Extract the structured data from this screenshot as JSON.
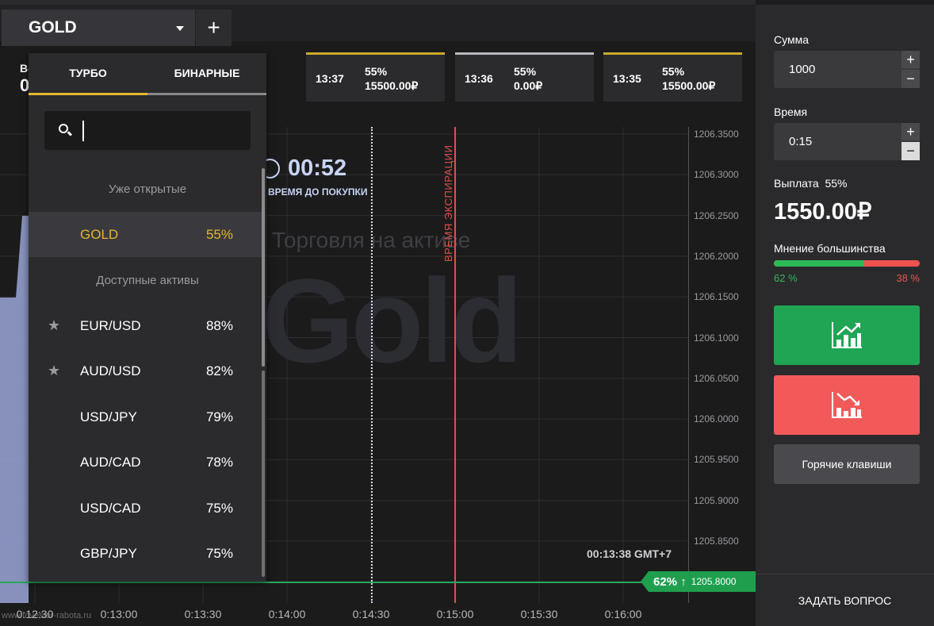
{
  "header": {
    "asset": "GOLD",
    "add_tab": "+",
    "balance_label": "Вс",
    "balance_value": "0"
  },
  "deals": [
    {
      "time": "13:37",
      "payout": "55%",
      "amount": "15500.00₽"
    },
    {
      "time": "13:36",
      "payout": "55%",
      "amount": "0.00₽"
    },
    {
      "time": "13:35",
      "payout": "55%",
      "amount": "15500.00₽"
    }
  ],
  "chart": {
    "asset_watermark": "Gold",
    "trading_caption": "Торговля на активе",
    "timer": "00:52",
    "timer_label": "ВРЕМЯ ДО ПОКУПКИ",
    "expiry_label": "ВРЕМЯ ЭКСПИРАЦИИ",
    "clock": "00:13:38 GMT+7",
    "current_payout": "62% ↑",
    "current_price": "1205.8000",
    "footer_url": "www.Investor-rabota.ru"
  },
  "chart_data": {
    "type": "line",
    "title": "",
    "xlabel": "",
    "ylabel": "",
    "x_ticks": [
      "0:12:30",
      "0:13:00",
      "0:13:30",
      "0:14:00",
      "0:14:30",
      "0:15:00",
      "0:15:30",
      "0:16:00"
    ],
    "y_ticks": [
      "1206.3500",
      "1206.3000",
      "1206.2500",
      "1206.2000",
      "1206.1500",
      "1206.1000",
      "1206.0500",
      "1206.0000",
      "1205.9500",
      "1205.9000",
      "1205.8500",
      "1205.8000"
    ],
    "ylim": [
      1205.8,
      1206.35
    ],
    "grid": true,
    "current_value": 1205.8
  },
  "dropdown": {
    "tab_turbo": "ТУРБО",
    "tab_binary": "БИНАРНЫЕ",
    "search_placeholder": "",
    "section_open": "Уже открытые",
    "section_available": "Доступные активы",
    "open_assets": [
      {
        "name": "GOLD",
        "payout": "55%"
      }
    ],
    "available_assets": [
      {
        "name": "EUR/USD",
        "payout": "88%",
        "starred": true
      },
      {
        "name": "AUD/USD",
        "payout": "82%",
        "starred": true
      },
      {
        "name": "USD/JPY",
        "payout": "79%",
        "starred": false
      },
      {
        "name": "AUD/CAD",
        "payout": "78%",
        "starred": false
      },
      {
        "name": "USD/CAD",
        "payout": "75%",
        "starred": false
      },
      {
        "name": "GBP/JPY",
        "payout": "75%",
        "starred": false
      }
    ]
  },
  "panel": {
    "amount_label": "Сумма",
    "amount_value": "1000",
    "time_label": "Время",
    "time_value": "0:15",
    "payout_label": "Выплата",
    "payout_pct": "55%",
    "payout_value": "1550.00₽",
    "sentiment_label": "Мнение большинства",
    "sentiment_up": "62 %",
    "sentiment_down": "38 %",
    "sentiment_up_fraction": 0.62,
    "hotkeys": "Горячие клавиши",
    "ask": "ЗАДАТЬ ВОПРОС",
    "colors": {
      "up": "#1fa553",
      "down": "#f25a5a",
      "accent": "#e3b72f"
    }
  }
}
